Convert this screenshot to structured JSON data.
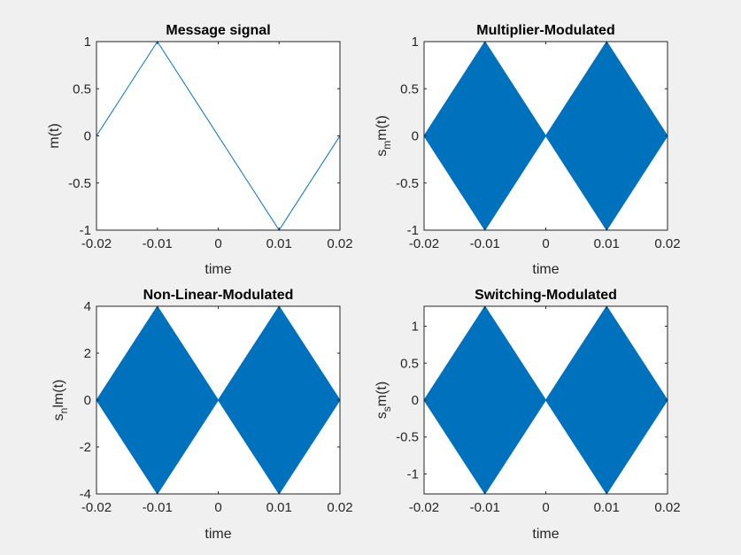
{
  "figure": {
    "background": "#f0f0f0",
    "series_color": "#0072bd"
  },
  "chart_data": [
    {
      "type": "line",
      "title": "Message signal",
      "xlabel": "time",
      "ylabel": {
        "main": "m(t)",
        "sub": "",
        "tail": ""
      },
      "xlim": [
        -0.02,
        0.02
      ],
      "ylim": [
        -1,
        1
      ],
      "xticks": [
        -0.02,
        -0.01,
        0,
        0.01,
        0.02
      ],
      "xtick_labels": [
        "-0.02",
        "-0.01",
        "0",
        "0.01",
        "0.02"
      ],
      "yticks": [
        -1,
        -0.5,
        0,
        0.5,
        1
      ],
      "ytick_labels": [
        "-1",
        "-0.5",
        "0",
        "0.5",
        "1"
      ],
      "series": [
        {
          "x": [
            -0.02,
            -0.01,
            0.01,
            0.02
          ],
          "y": [
            0,
            1,
            -1,
            0
          ],
          "style": "line"
        }
      ]
    },
    {
      "type": "area",
      "title": "Multiplier-Modulated",
      "xlabel": "time",
      "ylabel": {
        "main": "s",
        "sub": "m",
        "tail": "m(t)"
      },
      "xlim": [
        -0.02,
        0.02
      ],
      "ylim": [
        -1,
        1
      ],
      "xticks": [
        -0.02,
        -0.01,
        0,
        0.01,
        0.02
      ],
      "xtick_labels": [
        "-0.02",
        "-0.01",
        "0",
        "0.01",
        "0.02"
      ],
      "yticks": [
        -1,
        -0.5,
        0,
        0.5,
        1
      ],
      "ytick_labels": [
        "-1",
        "-0.5",
        "0",
        "0.5",
        "1"
      ],
      "series": [
        {
          "x": [
            -0.02,
            -0.01,
            0,
            0.01,
            0.02
          ],
          "y_upper": [
            0,
            1,
            0,
            1,
            0
          ],
          "y_lower": [
            0,
            -1,
            0,
            -1,
            0
          ],
          "style": "envelope"
        }
      ]
    },
    {
      "type": "area",
      "title": "Non-Linear-Modulated",
      "xlabel": "time",
      "ylabel": {
        "main": "s",
        "sub": "n",
        "tail": "lm(t)"
      },
      "xlim": [
        -0.02,
        0.02
      ],
      "ylim": [
        -4,
        4
      ],
      "xticks": [
        -0.02,
        -0.01,
        0,
        0.01,
        0.02
      ],
      "xtick_labels": [
        "-0.02",
        "-0.01",
        "0",
        "0.01",
        "0.02"
      ],
      "yticks": [
        -4,
        -2,
        0,
        2,
        4
      ],
      "ytick_labels": [
        "-4",
        "-2",
        "0",
        "2",
        "4"
      ],
      "series": [
        {
          "x": [
            -0.02,
            -0.01,
            0,
            0.01,
            0.02
          ],
          "y_upper": [
            0,
            4,
            0,
            4,
            0
          ],
          "y_lower": [
            0,
            -4,
            0,
            -4,
            0
          ],
          "style": "envelope"
        }
      ]
    },
    {
      "type": "area",
      "title": "Switching-Modulated",
      "xlabel": "time",
      "ylabel": {
        "main": "s",
        "sub": "s",
        "tail": "m(t)"
      },
      "xlim": [
        -0.02,
        0.02
      ],
      "ylim": [
        -1.27,
        1.27
      ],
      "xticks": [
        -0.02,
        -0.01,
        0,
        0.01,
        0.02
      ],
      "xtick_labels": [
        "-0.02",
        "-0.01",
        "0",
        "0.01",
        "0.02"
      ],
      "yticks": [
        -1,
        -0.5,
        0,
        0.5,
        1
      ],
      "ytick_labels": [
        "-1",
        "-0.5",
        "0",
        "0.5",
        "1"
      ],
      "series": [
        {
          "x": [
            -0.02,
            -0.01,
            0,
            0.01,
            0.02
          ],
          "y_upper": [
            0,
            1.27,
            0,
            1.27,
            0
          ],
          "y_lower": [
            0,
            -1.27,
            0,
            -1.27,
            0
          ],
          "style": "envelope"
        }
      ]
    }
  ]
}
